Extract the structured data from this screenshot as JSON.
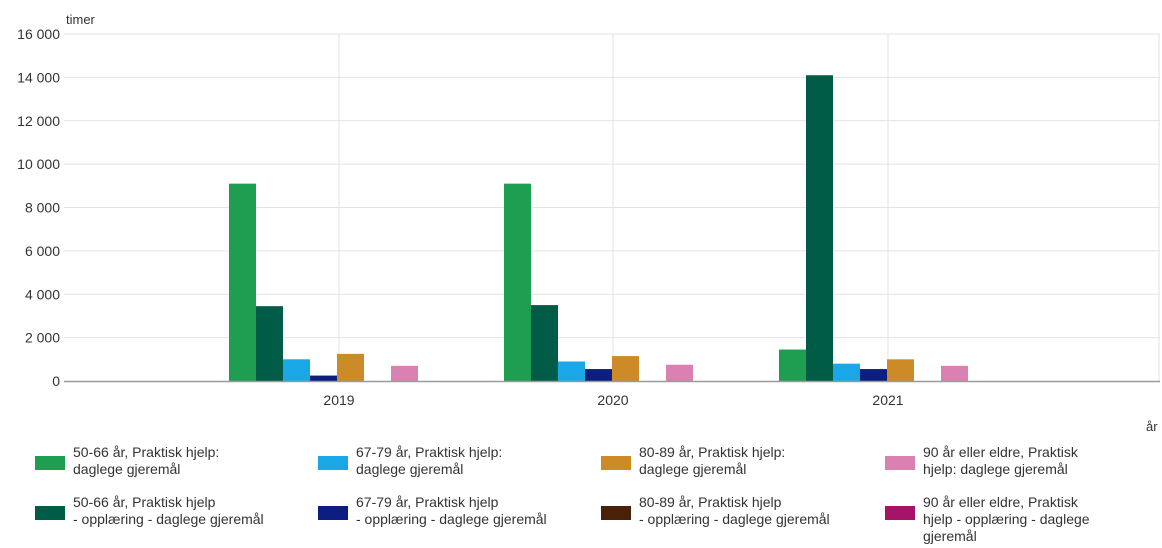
{
  "chart_data": {
    "type": "bar",
    "ylabel": "timer",
    "xlabel": "år",
    "ylim": [
      0,
      16000
    ],
    "yticks": [
      "0",
      "2 000",
      "4 000",
      "6 000",
      "8 000",
      "10 000",
      "12 000",
      "14 000",
      "16 000"
    ],
    "categories": [
      "2019",
      "2020",
      "2021"
    ],
    "grid": true,
    "legend_position": "bottom",
    "series": [
      {
        "name": "50-66 år, Praktisk hjelp: daglege gjeremål",
        "color": "#1e9e50",
        "values": [
          9100,
          9100,
          1450
        ]
      },
      {
        "name": "50-66 år, Praktisk hjelp - opplæring - daglege gjeremål",
        "color": "#005c46",
        "values": [
          3450,
          3500,
          14100
        ]
      },
      {
        "name": "67-79 år, Praktisk hjelp: daglege gjeremål",
        "color": "#1aa7e8",
        "values": [
          1000,
          900,
          800
        ]
      },
      {
        "name": "67-79 år, Praktisk hjelp - opplæring - daglege gjeremål",
        "color": "#0c1f80",
        "values": [
          250,
          550,
          550
        ]
      },
      {
        "name": "80-89 år, Praktisk hjelp: daglege gjeremål",
        "color": "#cc8b26",
        "values": [
          1250,
          1150,
          1000
        ]
      },
      {
        "name": "80-89 år, Praktisk hjelp - opplæring - daglege gjeremål",
        "color": "#4a2008",
        "values": [
          0,
          0,
          0
        ]
      },
      {
        "name": "90 år eller eldre, Praktisk hjelp: daglege gjeremål",
        "color": "#d981b0",
        "values": [
          700,
          750,
          700
        ]
      },
      {
        "name": "90 år eller eldre, Praktisk hjelp - opplæring - daglege gjeremål",
        "color": "#a51468",
        "values": [
          0,
          0,
          0
        ]
      }
    ]
  },
  "legend": {
    "items": [
      {
        "text": "50-66 år, Praktisk hjelp:\ndaglege gjeremål",
        "color": "#1e9e50"
      },
      {
        "text": "67-79 år, Praktisk hjelp:\ndaglege gjeremål",
        "color": "#1aa7e8"
      },
      {
        "text": "80-89 år, Praktisk hjelp:\ndaglege gjeremål",
        "color": "#cc8b26"
      },
      {
        "text": "90 år eller eldre, Praktisk\nhjelp: daglege gjeremål",
        "color": "#d981b0"
      },
      {
        "text": "50-66 år, Praktisk hjelp\n- opplæring - daglege gjeremål",
        "color": "#005c46"
      },
      {
        "text": "67-79 år, Praktisk hjelp\n- opplæring - daglege gjeremål",
        "color": "#0c1f80"
      },
      {
        "text": "80-89 år, Praktisk hjelp\n- opplæring - daglege gjeremål",
        "color": "#4a2008"
      },
      {
        "text": "90 år eller eldre, Praktisk\nhjelp - opplæring - daglege\ngjeremål",
        "color": "#a51468"
      }
    ]
  }
}
